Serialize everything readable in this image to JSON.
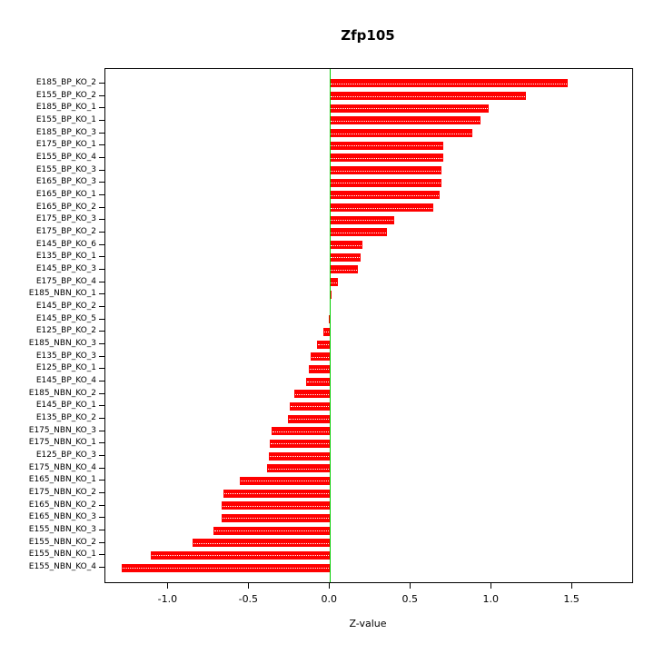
{
  "title": "Zfp105",
  "chart_data": {
    "type": "bar",
    "orientation": "horizontal",
    "title": "Zfp105",
    "xlabel": "Z-value",
    "ylabel": "",
    "xlim": [
      -1.39,
      1.87
    ],
    "x_ticks": [
      -1.0,
      -0.5,
      0.0,
      0.5,
      1.0,
      1.5
    ],
    "x_tick_labels": [
      "-1.0",
      "-0.5",
      "0.0",
      "0.5",
      "1.0",
      "1.5"
    ],
    "grid": false,
    "legend": "none",
    "bar_color": "#ff0000",
    "bar_hatch_color": "#ffffff",
    "zero_line_color": "#00cc00",
    "categories": [
      "E185_BP_KO_2",
      "E155_BP_KO_2",
      "E185_BP_KO_1",
      "E155_BP_KO_1",
      "E185_BP_KO_3",
      "E175_BP_KO_1",
      "E155_BP_KO_4",
      "E155_BP_KO_3",
      "E165_BP_KO_3",
      "E165_BP_KO_1",
      "E165_BP_KO_2",
      "E175_BP_KO_3",
      "E175_BP_KO_2",
      "E145_BP_KO_6",
      "E135_BP_KO_1",
      "E145_BP_KO_3",
      "E175_BP_KO_4",
      "E185_NBN_KO_1",
      "E145_BP_KO_2",
      "E145_BP_KO_5",
      "E125_BP_KO_2",
      "E185_NBN_KO_3",
      "E135_BP_KO_3",
      "E125_BP_KO_1",
      "E145_BP_KO_4",
      "E185_NBN_KO_2",
      "E145_BP_KO_1",
      "E135_BP_KO_2",
      "E175_NBN_KO_3",
      "E175_NBN_KO_1",
      "E125_BP_KO_3",
      "E175_NBN_KO_4",
      "E165_NBN_KO_1",
      "E175_NBN_KO_2",
      "E165_NBN_KO_2",
      "E165_NBN_KO_3",
      "E155_NBN_KO_3",
      "E155_NBN_KO_2",
      "E155_NBN_KO_1",
      "E155_NBN_KO_4"
    ],
    "values": [
      1.47,
      1.21,
      0.98,
      0.93,
      0.88,
      0.7,
      0.7,
      0.69,
      0.69,
      0.68,
      0.64,
      0.4,
      0.35,
      0.2,
      0.19,
      0.17,
      0.05,
      0.01,
      0.0,
      -0.01,
      -0.04,
      -0.08,
      -0.12,
      -0.13,
      -0.15,
      -0.22,
      -0.25,
      -0.26,
      -0.36,
      -0.37,
      -0.38,
      -0.39,
      -0.56,
      -0.66,
      -0.67,
      -0.67,
      -0.72,
      -0.85,
      -1.11,
      -1.29
    ]
  }
}
